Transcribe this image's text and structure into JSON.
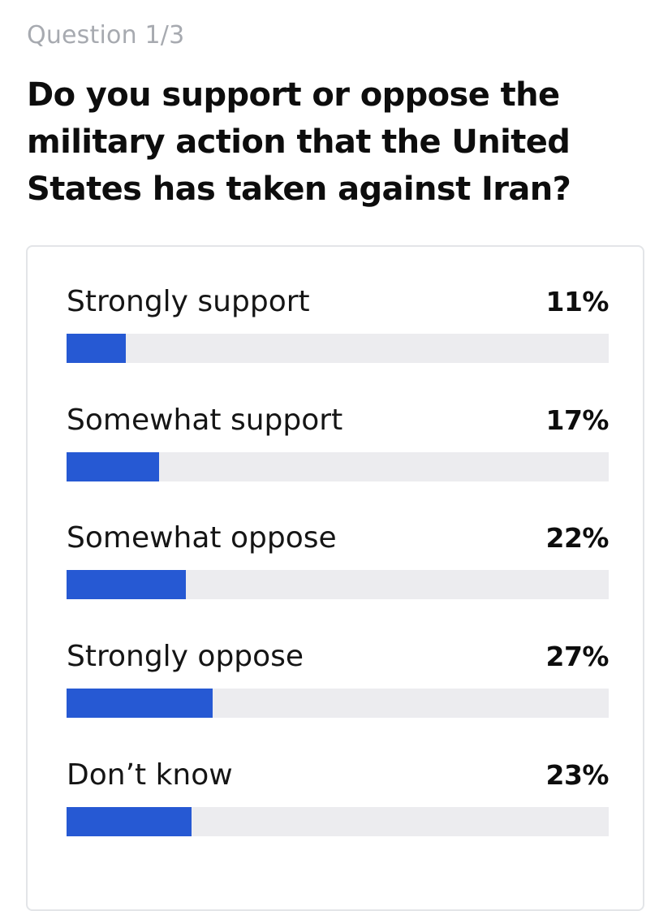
{
  "question_counter": "Question 1/3",
  "question_title": "Do you support or oppose the military action that the United States has taken against Iran?",
  "colors": {
    "bar_fill": "#2659d3",
    "bar_track": "#ececef",
    "counter_text": "#a7aab0"
  },
  "options": [
    {
      "label": "Strongly support",
      "percent_label": "11%",
      "value": 11
    },
    {
      "label": "Somewhat support",
      "percent_label": "17%",
      "value": 17
    },
    {
      "label": "Somewhat oppose",
      "percent_label": "22%",
      "value": 22
    },
    {
      "label": "Strongly oppose",
      "percent_label": "27%",
      "value": 27
    },
    {
      "label": "Don’t know",
      "percent_label": "23%",
      "value": 23
    }
  ]
}
